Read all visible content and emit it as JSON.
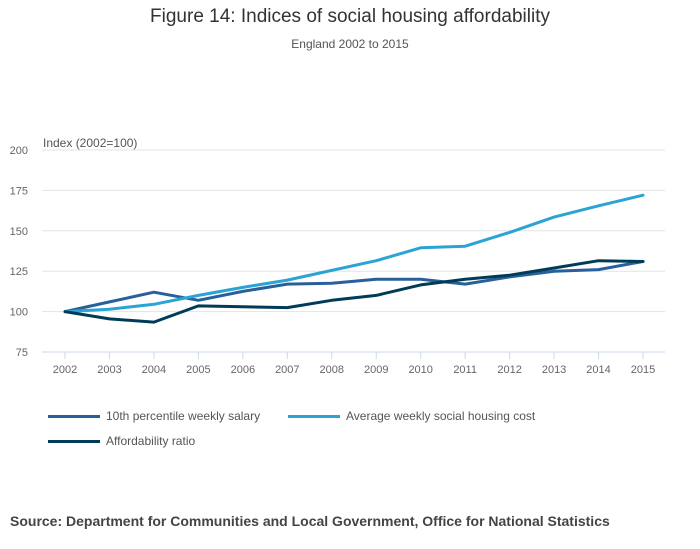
{
  "chart_data": {
    "type": "line",
    "title": "Figure 14: Indices of social housing affordability",
    "subtitle": "England 2002 to 2015",
    "xlabel": "",
    "ylabel": "Index (2002=100)",
    "x": [
      2002,
      2003,
      2004,
      2005,
      2006,
      2007,
      2008,
      2009,
      2010,
      2011,
      2012,
      2013,
      2014,
      2015
    ],
    "ylim": [
      75,
      200
    ],
    "yticks": [
      75,
      100,
      125,
      150,
      175,
      200
    ],
    "grid": true,
    "legend": "bottom",
    "series": [
      {
        "name": "10th percentile weekly salary",
        "color": "#27609a",
        "values": [
          100,
          106,
          112,
          107,
          112.5,
          117,
          117.6,
          120,
          120,
          117,
          121.5,
          125,
          126,
          131
        ]
      },
      {
        "name": "Average weekly social housing cost",
        "color": "#2ba3d4",
        "values": [
          100,
          101.5,
          104.5,
          110,
          115,
          119.5,
          125.5,
          131.5,
          139.5,
          140.5,
          149,
          158.5,
          165.5,
          172
        ]
      },
      {
        "name": "Affordability ratio",
        "color": "#003c57",
        "values": [
          100,
          95.5,
          93.5,
          103.5,
          103,
          102.5,
          107,
          110,
          116.5,
          120,
          122.5,
          127,
          131.5,
          131
        ]
      }
    ]
  },
  "source": "Source: Department for Communities and Local Government, Office for National Statistics"
}
